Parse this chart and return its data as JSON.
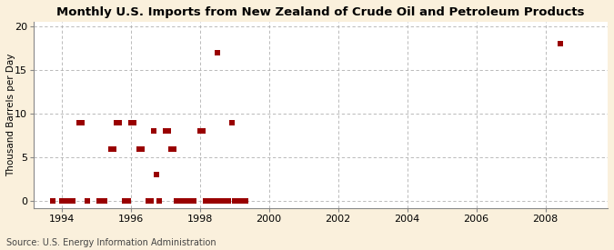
{
  "title": "Monthly U.S. Imports from New Zealand of Crude Oil and Petroleum Products",
  "ylabel": "Thousand Barrels per Day",
  "source": "Source: U.S. Energy Information Administration",
  "background_color": "#faf0dc",
  "plot_background_color": "#ffffff",
  "marker_color": "#990000",
  "marker_size": 16,
  "xlim": [
    1993.2,
    2009.8
  ],
  "ylim": [
    -0.8,
    20.5
  ],
  "yticks": [
    0,
    5,
    10,
    15,
    20
  ],
  "xticks": [
    1994,
    1996,
    1998,
    2000,
    2002,
    2004,
    2006,
    2008
  ],
  "data_points": [
    [
      1993.75,
      0
    ],
    [
      1994.0,
      0
    ],
    [
      1994.08,
      0
    ],
    [
      1994.17,
      0
    ],
    [
      1994.25,
      0
    ],
    [
      1994.33,
      0
    ],
    [
      1994.5,
      9
    ],
    [
      1994.58,
      9
    ],
    [
      1994.75,
      0
    ],
    [
      1995.08,
      0
    ],
    [
      1995.17,
      0
    ],
    [
      1995.25,
      0
    ],
    [
      1995.42,
      6
    ],
    [
      1995.5,
      6
    ],
    [
      1995.58,
      9
    ],
    [
      1995.67,
      9
    ],
    [
      1995.83,
      0
    ],
    [
      1995.92,
      0
    ],
    [
      1996.0,
      9
    ],
    [
      1996.08,
      9
    ],
    [
      1996.25,
      6
    ],
    [
      1996.33,
      6
    ],
    [
      1996.5,
      0
    ],
    [
      1996.58,
      0
    ],
    [
      1996.67,
      8
    ],
    [
      1996.75,
      3
    ],
    [
      1996.83,
      0
    ],
    [
      1997.0,
      8
    ],
    [
      1997.08,
      8
    ],
    [
      1997.17,
      6
    ],
    [
      1997.25,
      6
    ],
    [
      1997.33,
      0
    ],
    [
      1997.42,
      0
    ],
    [
      1997.5,
      0
    ],
    [
      1997.58,
      0
    ],
    [
      1997.67,
      0
    ],
    [
      1997.75,
      0
    ],
    [
      1997.83,
      0
    ],
    [
      1998.0,
      8
    ],
    [
      1998.08,
      8
    ],
    [
      1998.17,
      0
    ],
    [
      1998.25,
      0
    ],
    [
      1998.33,
      0
    ],
    [
      1998.42,
      0
    ],
    [
      1998.5,
      17
    ],
    [
      1998.58,
      0
    ],
    [
      1998.67,
      0
    ],
    [
      1998.75,
      0
    ],
    [
      1998.83,
      0
    ],
    [
      1998.92,
      9
    ],
    [
      1999.0,
      0
    ],
    [
      1999.08,
      0
    ],
    [
      1999.17,
      0
    ],
    [
      1999.33,
      0
    ],
    [
      2008.42,
      18
    ]
  ]
}
